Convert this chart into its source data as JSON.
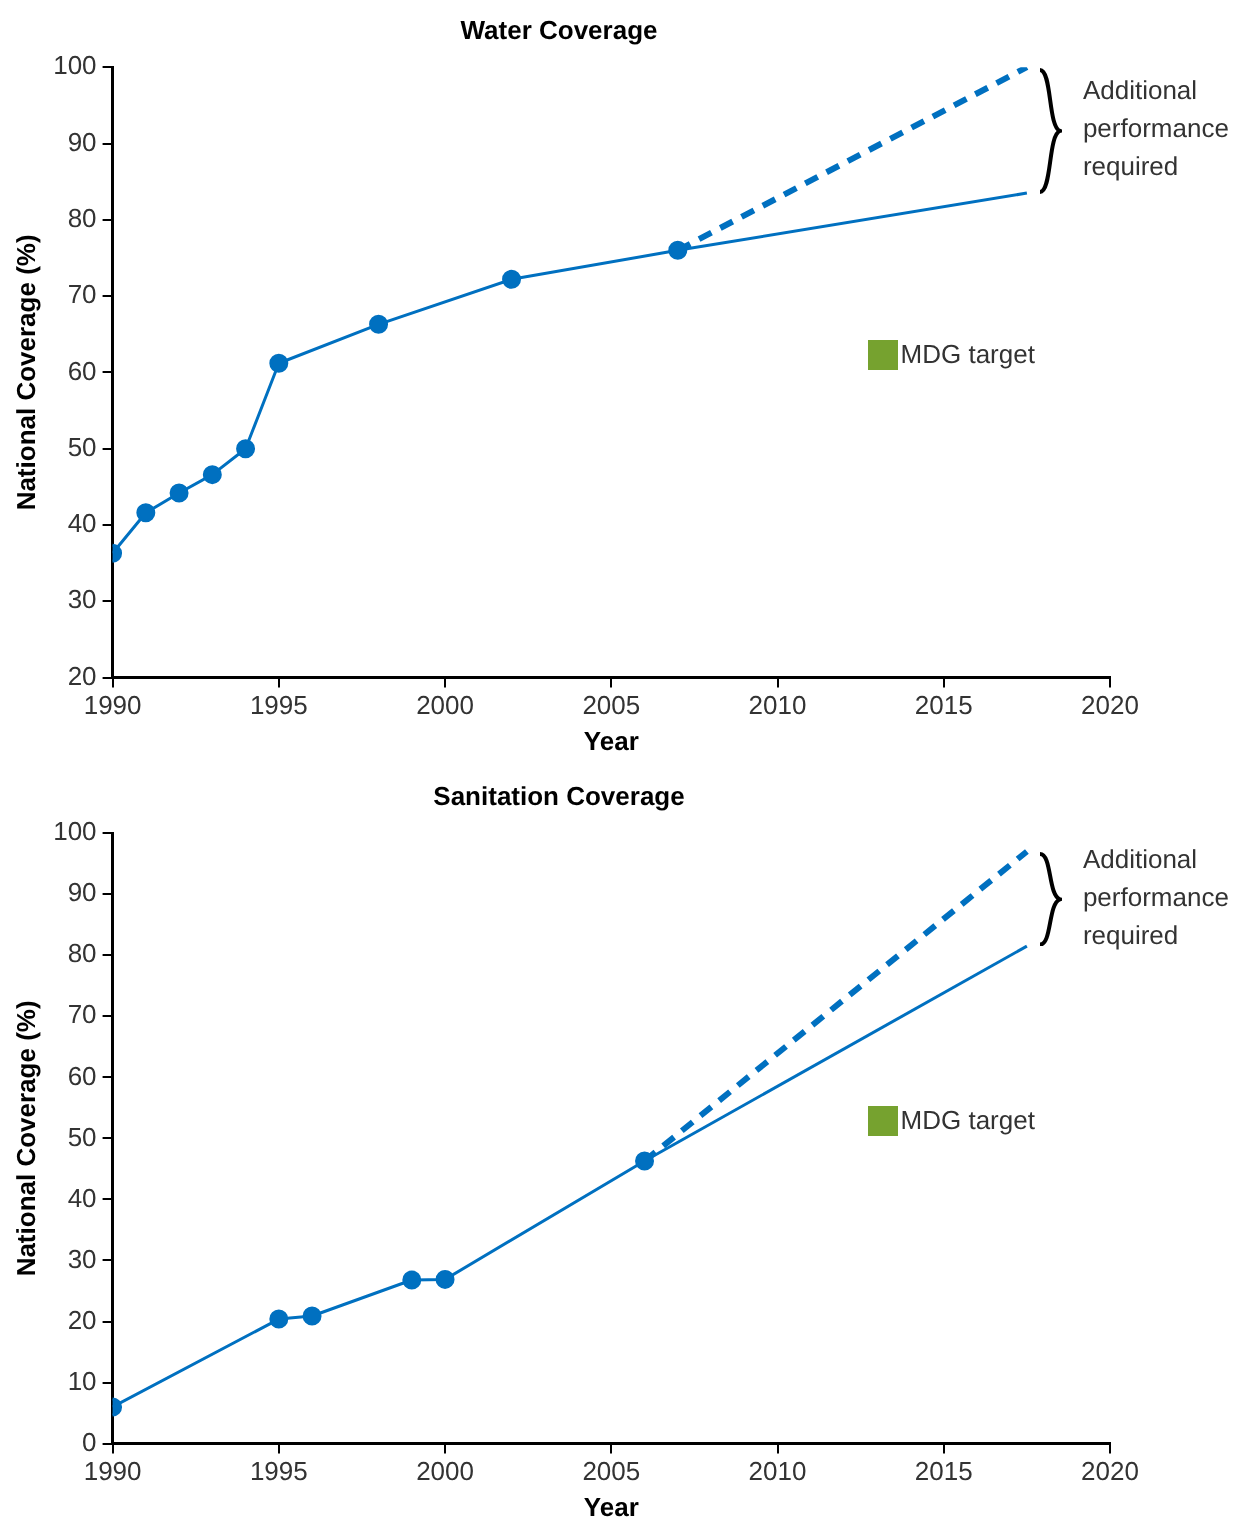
{
  "chart_data": [
    {
      "type": "line",
      "title": "Water Coverage",
      "xlabel": "Year",
      "ylabel": "National Coverage (%)",
      "xlim": [
        1990,
        2020
      ],
      "xticks": [
        1990,
        1995,
        2000,
        2005,
        2010,
        2015,
        2020
      ],
      "ylim": [
        20,
        100
      ],
      "yticks": [
        20,
        30,
        40,
        50,
        60,
        70,
        80,
        90,
        100
      ],
      "grid": false,
      "legend": false,
      "series": [
        {
          "color": "#0070c0",
          "x": [
            1990,
            1991,
            1992,
            1993,
            1994,
            1995,
            1998,
            2002,
            2007
          ],
          "values": [
            36.3,
            41.6,
            44.2,
            46.6,
            50,
            61.2,
            66.3,
            72.2,
            76
          ],
          "marker": "circle",
          "line_style": "solid"
        },
        {
          "color": "#0070c0",
          "x": [
            2007,
            2017.5
          ],
          "values": [
            76,
            83.5
          ],
          "marker": "none",
          "line_style": "solid"
        },
        {
          "color": "#0070c0",
          "x": [
            2007,
            2017.5
          ],
          "values": [
            76,
            100
          ],
          "marker": "none",
          "line_style": "dashed"
        }
      ],
      "annotations": [
        "Additional performance required",
        "MDG target"
      ]
    },
    {
      "type": "line",
      "title": "Sanitation Coverage",
      "xlabel": "Year",
      "ylabel": "National Coverage (%)",
      "xlim": [
        1990,
        2020
      ],
      "xticks": [
        1990,
        1995,
        2000,
        2005,
        2010,
        2015,
        2020
      ],
      "ylim": [
        0,
        100
      ],
      "yticks": [
        0,
        10,
        20,
        30,
        40,
        50,
        60,
        70,
        80,
        90,
        100
      ],
      "grid": false,
      "legend": false,
      "series": [
        {
          "color": "#0070c0",
          "x": [
            1990,
            1995,
            1996,
            1999,
            2000,
            2006
          ],
          "values": [
            6,
            20.4,
            20.9,
            26.8,
            26.9,
            46.3
          ],
          "marker": "circle",
          "line_style": "solid"
        },
        {
          "color": "#0070c0",
          "x": [
            2006,
            2017.5
          ],
          "values": [
            46.3,
            81.5
          ],
          "marker": "none",
          "line_style": "solid"
        },
        {
          "color": "#0070c0",
          "x": [
            2006,
            2017.5
          ],
          "values": [
            46.3,
            97
          ],
          "marker": "none",
          "line_style": "dashed"
        }
      ],
      "annotations": [
        "Additional performance required",
        "MDG target"
      ]
    }
  ]
}
